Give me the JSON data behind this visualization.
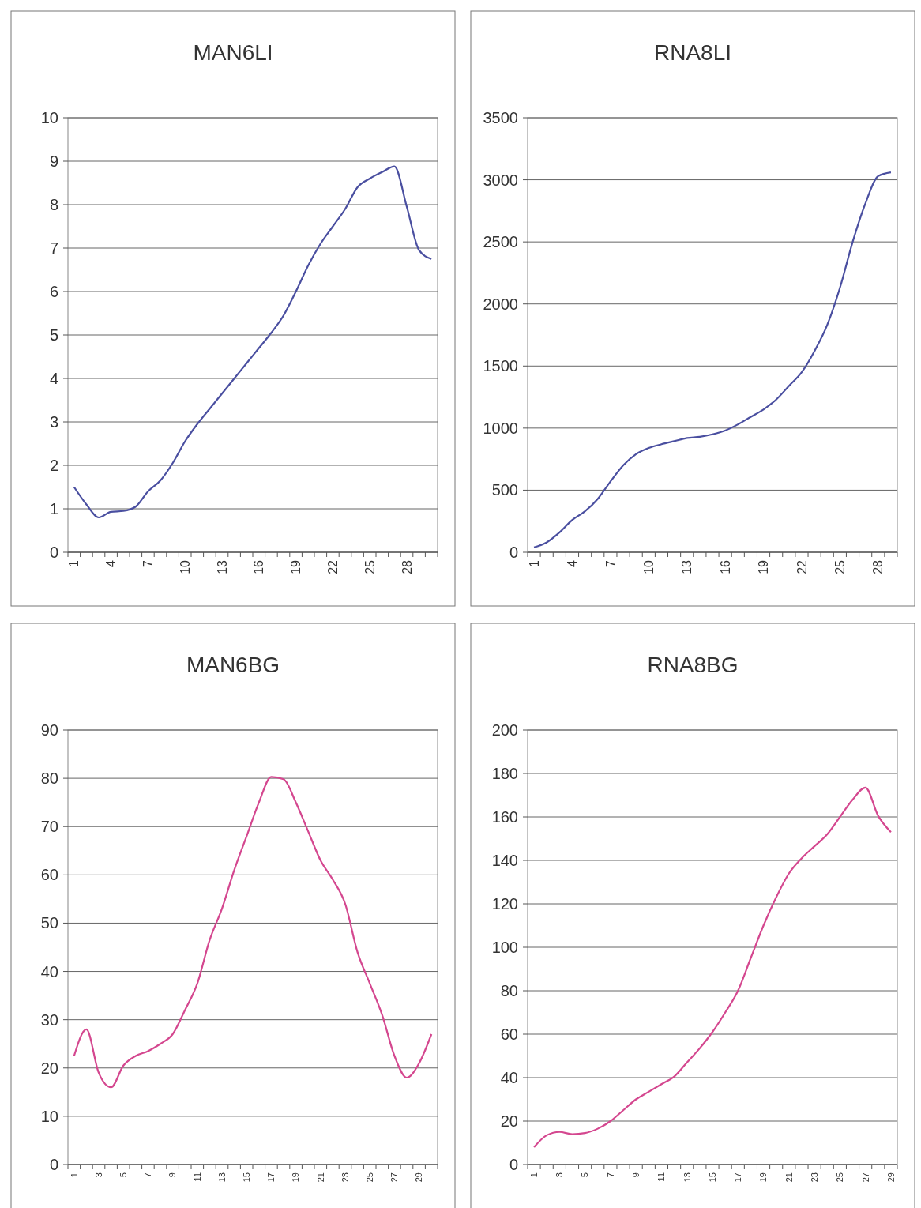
{
  "chart_data": [
    {
      "type": "line",
      "title": "MAN6LI",
      "categories": [
        "1",
        null,
        null,
        "4",
        null,
        null,
        "7",
        null,
        null,
        "10",
        null,
        null,
        "13",
        null,
        null,
        "16",
        null,
        null,
        "19",
        null,
        null,
        "22",
        null,
        null,
        "25",
        null,
        null,
        "28",
        null,
        null
      ],
      "series": [
        {
          "color": "#4a4fa0",
          "values": [
            1.5,
            1.1,
            0.8,
            0.93,
            0.95,
            1.05,
            1.4,
            1.65,
            2.05,
            2.55,
            2.95,
            3.3,
            3.65,
            4.0,
            4.35,
            4.7,
            5.05,
            5.45,
            6.0,
            6.6,
            7.1,
            7.5,
            7.9,
            8.4,
            8.6,
            8.75,
            8.88,
            7.95,
            6.95,
            6.75
          ]
        }
      ],
      "ylim": [
        0,
        10
      ],
      "yticks": [
        0,
        1,
        2,
        3,
        4,
        5,
        6,
        7,
        8,
        9,
        10
      ],
      "grid": "y"
    },
    {
      "type": "line",
      "title": "RNA8LI",
      "categories": [
        "1",
        null,
        null,
        "4",
        null,
        null,
        "7",
        null,
        null,
        "10",
        null,
        null,
        "13",
        null,
        null,
        "16",
        null,
        null,
        "19",
        null,
        null,
        "22",
        null,
        null,
        "25",
        null,
        null,
        "28",
        null
      ],
      "series": [
        {
          "color": "#4a4fa0",
          "values": [
            40,
            80,
            160,
            260,
            330,
            430,
            570,
            700,
            790,
            840,
            870,
            895,
            920,
            930,
            950,
            980,
            1030,
            1090,
            1150,
            1230,
            1340,
            1450,
            1620,
            1830,
            2130,
            2500,
            2810,
            3030,
            3060
          ]
        }
      ],
      "ylim": [
        0,
        3500
      ],
      "yticks": [
        0,
        500,
        1000,
        1500,
        2000,
        2500,
        3000,
        3500
      ],
      "grid": "y"
    },
    {
      "type": "line",
      "title": "MAN6BG",
      "categories": [
        "1",
        null,
        "3",
        null,
        "5",
        null,
        "7",
        null,
        "9",
        null,
        "11",
        null,
        "13",
        null,
        "15",
        null,
        "17",
        null,
        "19",
        null,
        "21",
        null,
        "23",
        null,
        "25",
        null,
        "27",
        null,
        "29",
        null
      ],
      "series": [
        {
          "color": "#d4478f",
          "values": [
            22.5,
            28,
            19,
            16,
            20.5,
            22.5,
            23.5,
            25,
            27,
            32,
            37.5,
            46.5,
            53,
            61,
            68,
            75,
            80.3,
            79.8,
            75,
            69,
            63,
            59,
            54,
            44,
            37.5,
            31,
            22.5,
            18,
            21,
            27
          ]
        }
      ],
      "ylim": [
        0,
        90
      ],
      "yticks": [
        0,
        10,
        20,
        30,
        40,
        50,
        60,
        70,
        80,
        90
      ],
      "grid": "y"
    },
    {
      "type": "line",
      "title": "RNA8BG",
      "categories": [
        "1",
        null,
        "3",
        null,
        "5",
        null,
        "7",
        null,
        "9",
        null,
        "11",
        null,
        "13",
        null,
        "15",
        null,
        "17",
        null,
        "19",
        null,
        "21",
        null,
        "23",
        null,
        "25",
        null,
        "27",
        null,
        "29"
      ],
      "series": [
        {
          "color": "#d4478f",
          "values": [
            8,
            13.5,
            15,
            14,
            14.5,
            16.5,
            20,
            25,
            30,
            33.5,
            37,
            40.5,
            47,
            53.5,
            61,
            70,
            80,
            95,
            110,
            123,
            134,
            141,
            146.5,
            152,
            160,
            168,
            173.5,
            160.5,
            153
          ]
        }
      ],
      "ylim": [
        0,
        200
      ],
      "yticks": [
        0,
        20,
        40,
        60,
        80,
        100,
        120,
        140,
        160,
        180,
        200
      ],
      "grid": "y"
    }
  ]
}
